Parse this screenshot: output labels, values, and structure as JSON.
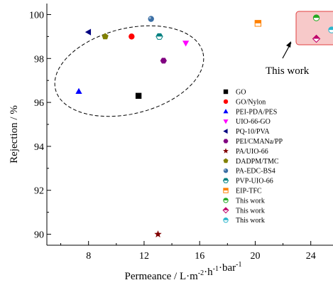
{
  "chart_data": {
    "type": "scatter",
    "xlabel": "Permeance / L·m⁻²·h⁻¹·bar⁻¹",
    "ylabel": "Rejection / %",
    "xlim": [
      5,
      25.6
    ],
    "ylim": [
      89.5,
      100.5
    ],
    "xticks": [
      8,
      12,
      16,
      20,
      24
    ],
    "yticks": [
      90,
      92,
      94,
      96,
      98,
      100
    ],
    "grid": false,
    "legend_position": "lower-right",
    "annotation": "This work",
    "series": [
      {
        "name": "GO",
        "marker": "square",
        "color": "#000000",
        "x": [
          11.6
        ],
        "y": [
          96.3
        ]
      },
      {
        "name": "GO/Nylon",
        "marker": "circle",
        "color": "#ff0000",
        "x": [
          11.1
        ],
        "y": [
          99.0
        ]
      },
      {
        "name": "PEI-PDA/PES",
        "marker": "triangle-up",
        "color": "#0000ff",
        "x": [
          7.3
        ],
        "y": [
          96.5
        ]
      },
      {
        "name": "UIO-66-GO",
        "marker": "triangle-down",
        "color": "#ff00ff",
        "x": [
          15.0
        ],
        "y": [
          98.7
        ]
      },
      {
        "name": "PQ-10/PVA",
        "marker": "triangle-left",
        "color": "#000080",
        "x": [
          8.0
        ],
        "y": [
          99.2
        ]
      },
      {
        "name": "PEI/CMANa/PP",
        "marker": "hexagon",
        "color": "#800080",
        "x": [
          13.4
        ],
        "y": [
          97.9
        ]
      },
      {
        "name": "PA/UIO-66",
        "marker": "star",
        "color": "#800000",
        "x": [
          13.0
        ],
        "y": [
          90.0
        ]
      },
      {
        "name": "DADPM/TMC",
        "marker": "pentagon",
        "color": "#808000",
        "x": [
          9.2
        ],
        "y": [
          99.0
        ]
      },
      {
        "name": "PA-EDC-BS4",
        "marker": "sphere",
        "color": "#3b6fa5",
        "x": [
          12.5
        ],
        "y": [
          99.8
        ]
      },
      {
        "name": "PVP-UIO-66",
        "marker": "hexagon-half",
        "color": "#008080",
        "x": [
          13.1
        ],
        "y": [
          99.0
        ]
      },
      {
        "name": "EIP-TFC",
        "marker": "square-half",
        "color": "#ff8000",
        "x": [
          20.2
        ],
        "y": [
          99.6
        ]
      },
      {
        "name": "This work",
        "marker": "circle-half",
        "color": "#22aa22",
        "x": [
          24.4
        ],
        "y": [
          99.85
        ]
      },
      {
        "name": "This work",
        "marker": "diamond-half",
        "color": "#c0006a",
        "x": [
          24.4
        ],
        "y": [
          98.9
        ]
      },
      {
        "name": "This work",
        "marker": "circle-half",
        "color": "#2bb5cc",
        "x": [
          25.5
        ],
        "y": [
          99.3
        ]
      }
    ]
  }
}
